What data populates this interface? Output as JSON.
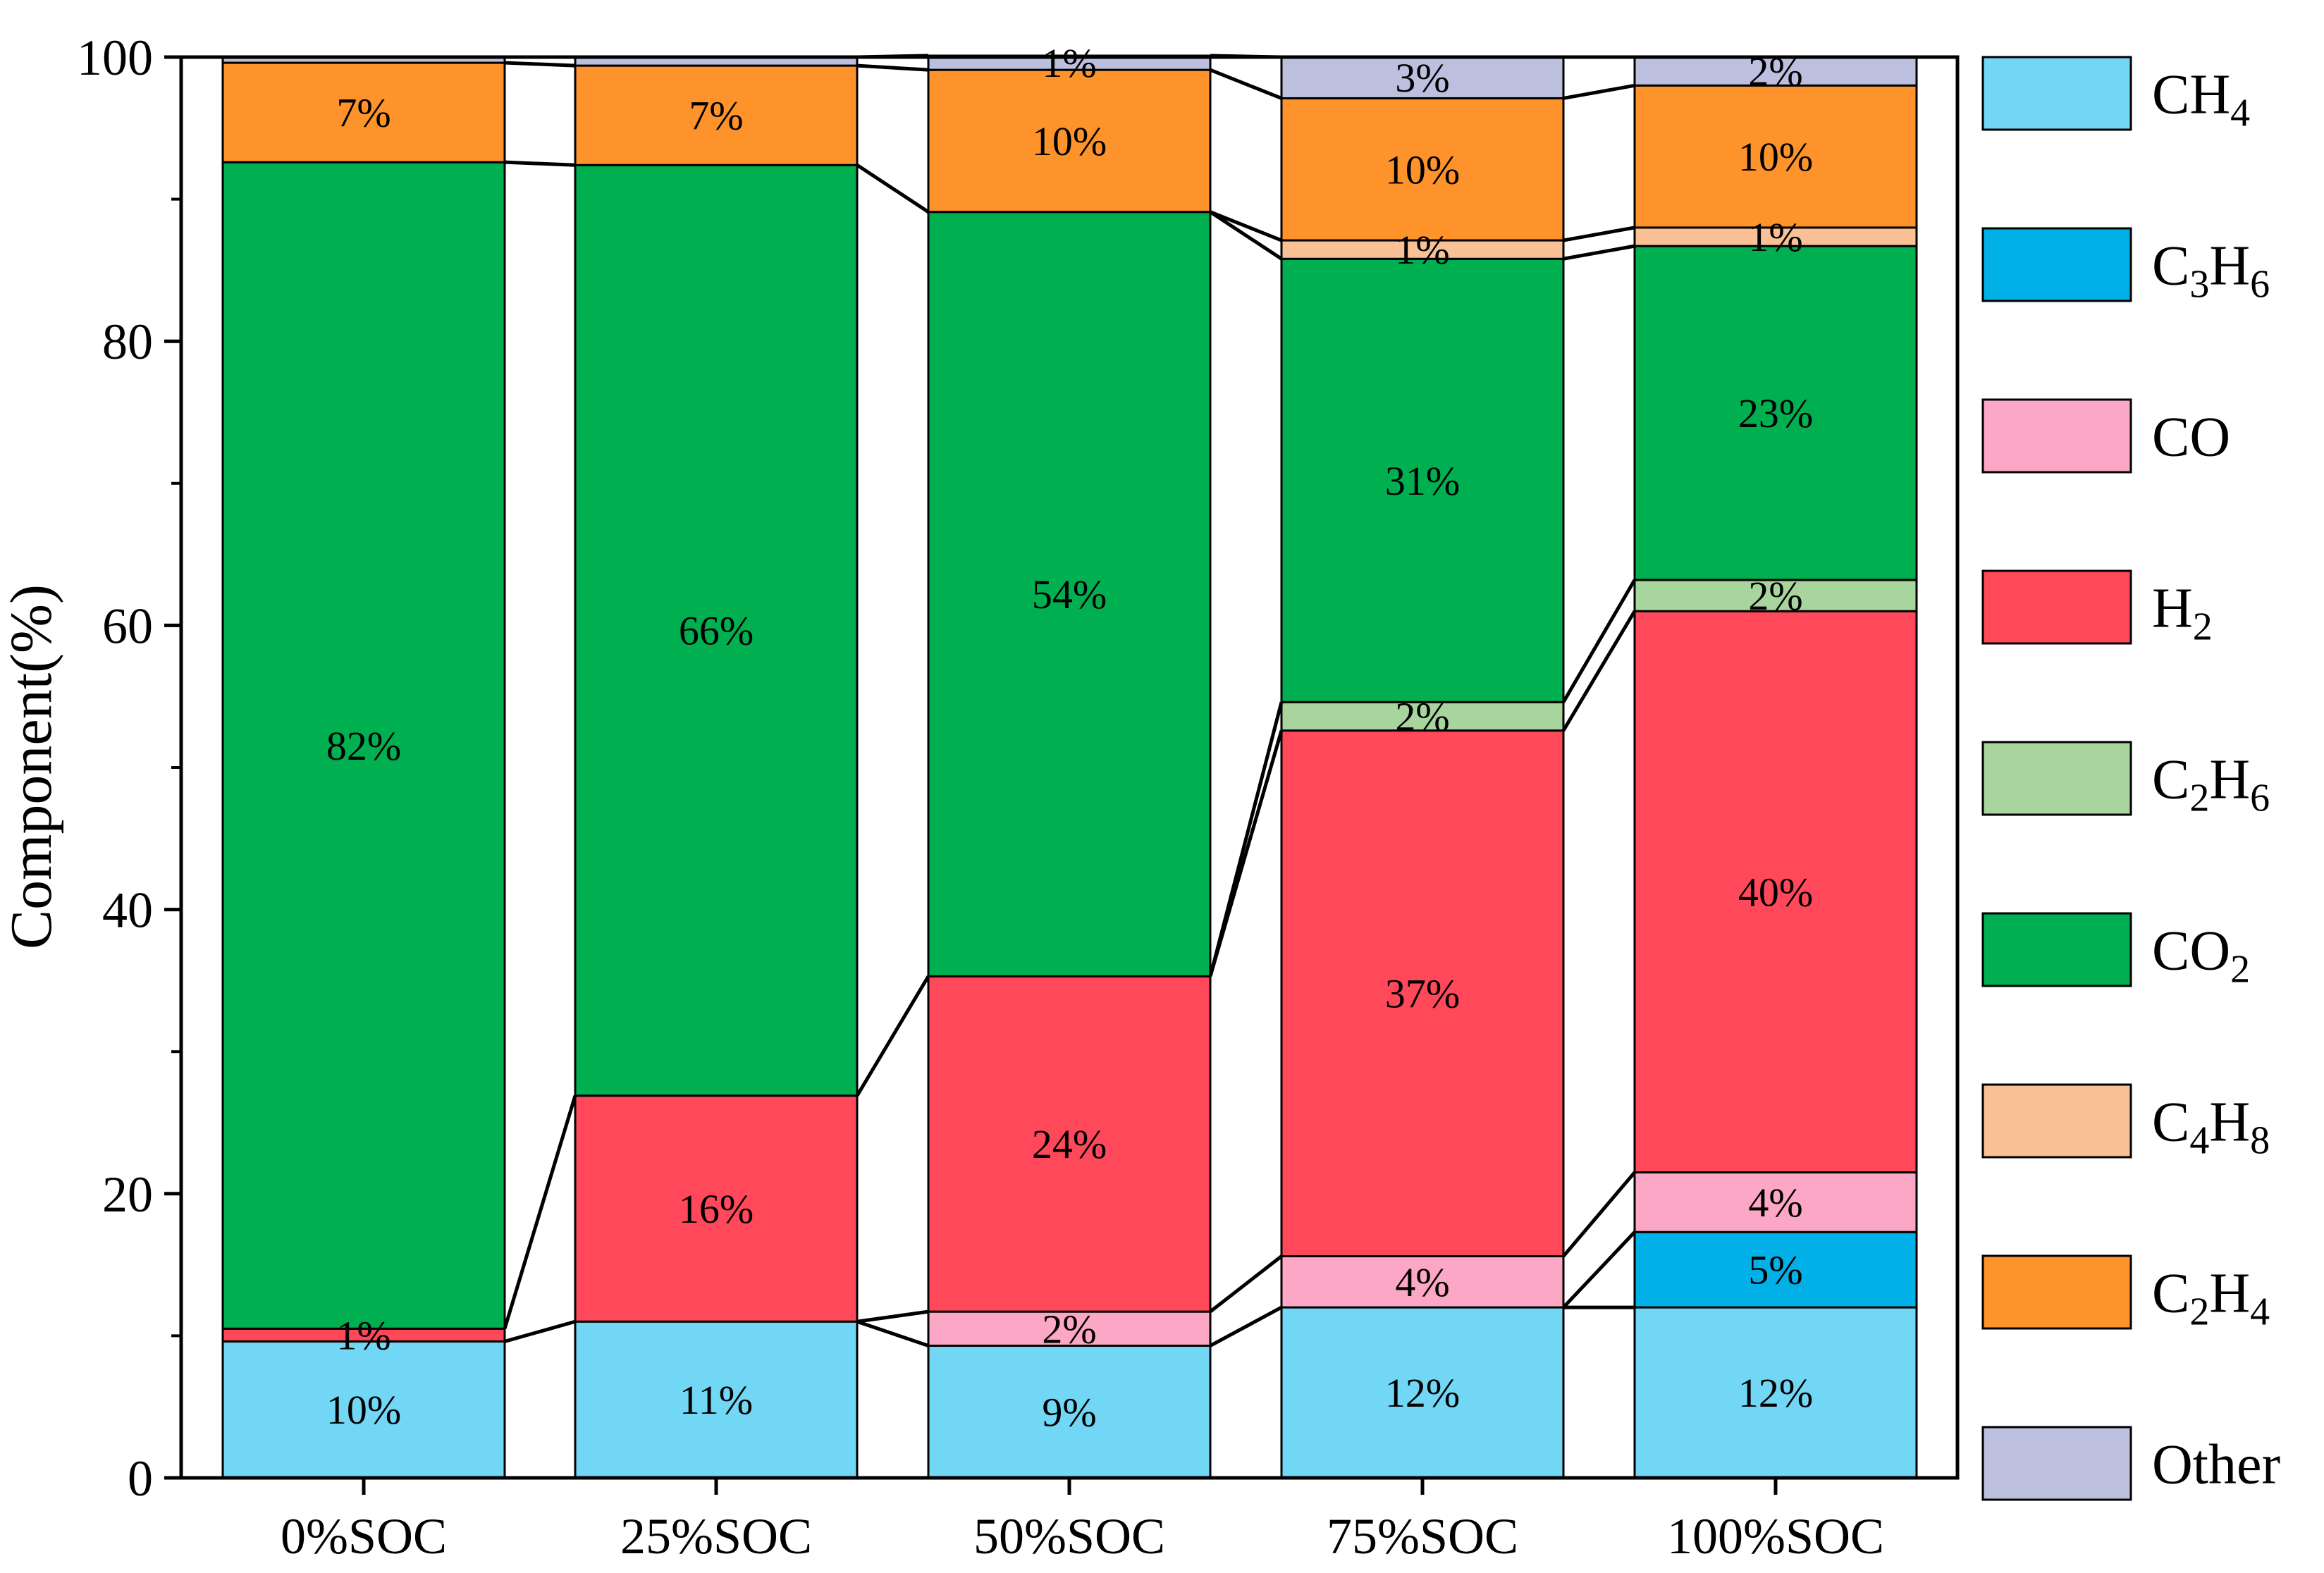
{
  "chart_data": {
    "type": "bar",
    "stacked": true,
    "categories": [
      "0%SOC",
      "25%SOC",
      "50%SOC",
      "75%SOC",
      "100%SOC"
    ],
    "ylabel": "Component(%)",
    "xlabel": "",
    "ylim": [
      0,
      100
    ],
    "yticks": [
      "0",
      "20",
      "40",
      "60",
      "80",
      "100"
    ],
    "grid": false,
    "legend_position": "right",
    "series": [
      {
        "key": "CH4",
        "base": "CH",
        "sub": "4",
        "color": "#72d6f5",
        "values": [
          9.6,
          11.0,
          9.3,
          12.0,
          12.0
        ],
        "labels": [
          "10%",
          "11%",
          "9%",
          "12%",
          "12%"
        ]
      },
      {
        "key": "C3H6",
        "base": "C",
        "sub": "3",
        "base2": "H",
        "sub2": "6",
        "color": "#00b0e6",
        "values": [
          0,
          0,
          0,
          0,
          5.3
        ],
        "labels": [
          "",
          "",
          "",
          "",
          "5%"
        ]
      },
      {
        "key": "CO",
        "base": "CO",
        "color": "#fba7c5",
        "values": [
          0,
          0,
          2.4,
          3.6,
          4.2
        ],
        "labels": [
          "",
          "",
          "2%",
          "4%",
          "4%"
        ]
      },
      {
        "key": "H2",
        "base": "H",
        "sub": "2",
        "color": "#ff4859",
        "values": [
          0.9,
          15.9,
          23.6,
          37.0,
          39.5
        ],
        "labels": [
          "1%",
          "16%",
          "24%",
          "37%",
          "40%"
        ]
      },
      {
        "key": "C2H6",
        "base": "C",
        "sub": "2",
        "base2": "H",
        "sub2": "6",
        "color": "#a8d59e",
        "values": [
          0,
          0,
          0,
          2.0,
          2.2
        ],
        "labels": [
          "",
          "",
          "",
          "2%",
          "2%"
        ]
      },
      {
        "key": "CO2",
        "base": "CO",
        "sub": "2",
        "color": "#00b050",
        "values": [
          82.1,
          65.5,
          53.8,
          31.2,
          23.5
        ],
        "labels": [
          "82%",
          "66%",
          "54%",
          "31%",
          "23%"
        ]
      },
      {
        "key": "C4H8",
        "base": "C",
        "sub": "4",
        "base2": "H",
        "sub2": "8",
        "color": "#f9c195",
        "values": [
          0,
          0,
          0,
          1.3,
          1.3
        ],
        "labels": [
          "",
          "",
          "",
          "1%",
          "1%"
        ]
      },
      {
        "key": "C2H4",
        "base": "C",
        "sub": "2",
        "base2": "H",
        "sub2": "4",
        "color": "#fe922b",
        "values": [
          7.0,
          7.0,
          10.0,
          10.0,
          10.0
        ],
        "labels": [
          "7%",
          "7%",
          "10%",
          "10%",
          "10%"
        ]
      },
      {
        "key": "Other",
        "base": "Other",
        "color": "#bdbfdf",
        "values": [
          0.4,
          0.6,
          1.0,
          2.9,
          2.0
        ],
        "labels": [
          "",
          "",
          "1%",
          "3%",
          "2%"
        ]
      }
    ]
  }
}
